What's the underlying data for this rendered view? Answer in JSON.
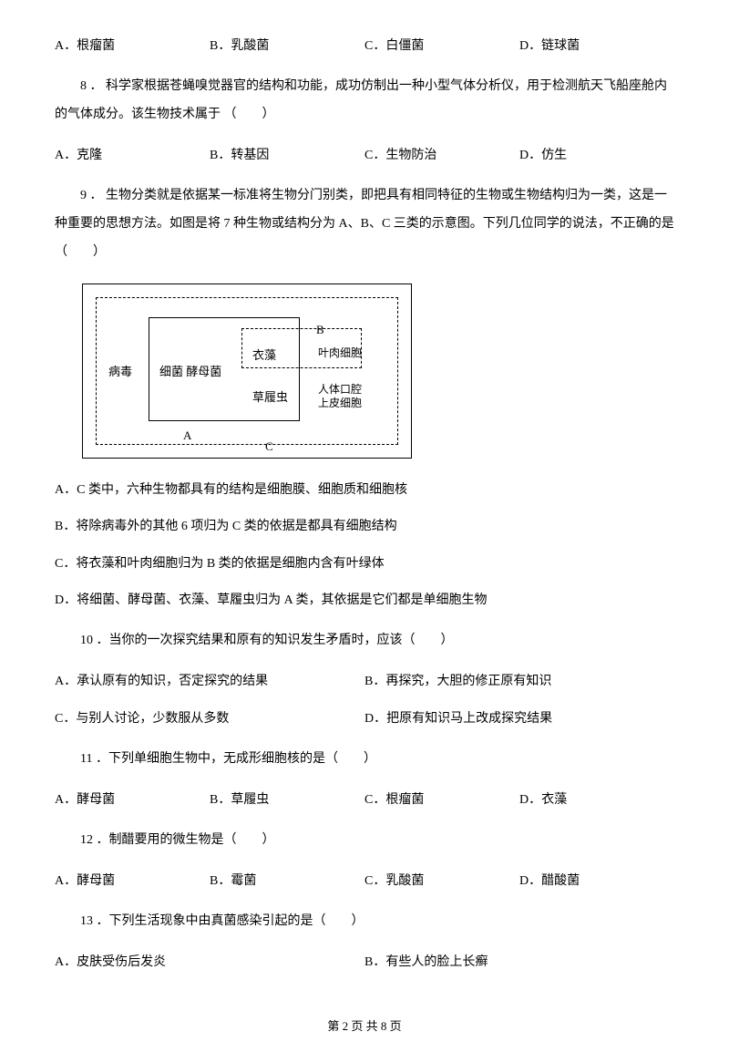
{
  "q7": {
    "options": {
      "A": "A．根瘤菌",
      "B": "B．乳酸菌",
      "C": "C．白僵菌",
      "D": "D．链球菌"
    }
  },
  "q8": {
    "stem": "8 ． 科学家根据苍蝇嗅觉器官的结构和功能，成功仿制出一种小型气体分析仪，用于检测航天飞船座舱内的气体成分。该生物技术属于 （　　）",
    "options": {
      "A": "A．克隆",
      "B": "B．转基因",
      "C": "C．生物防治",
      "D": "D．仿生"
    }
  },
  "q9": {
    "stem": "9 ． 生物分类就是依据某一标准将生物分门别类，即把具有相同特征的生物或生物结构归为一类，这是一种重要的思想方法。如图是将 7 种生物或结构分为 A、B、C 三类的示意图。下列几位同学的说法，不正确的是（　　）",
    "diagram": {
      "left_label": "病毒",
      "a_row": "细菌   酵母菌",
      "yizao": "衣藻",
      "caolv": "草履虫",
      "b_label": "B",
      "right_top": "叶肉细胞",
      "right_bot_1": "人体口腔",
      "right_bot_2": "上皮细胞",
      "a_label": "A",
      "c_label": "C"
    },
    "options": {
      "A": "A．C 类中，六种生物都具有的结构是细胞膜、细胞质和细胞核",
      "B": "B．将除病毒外的其他 6 项归为 C 类的依据是都具有细胞结构",
      "C": "C．将衣藻和叶肉细胞归为 B 类的依据是细胞内含有叶绿体",
      "D": "D．将细菌、酵母菌、衣藻、草履虫归为 A 类，其依据是它们都是单细胞生物"
    }
  },
  "q10": {
    "stem": "10 ．当你的一次探究结果和原有的知识发生矛盾时，应该（　　）",
    "options": {
      "A": "A．承认原有的知识，否定探究的结果",
      "B": "B．再探究，大胆的修正原有知识",
      "C": "C．与别人讨论，少数服从多数",
      "D": "D．把原有知识马上改成探究结果"
    }
  },
  "q11": {
    "stem": "11 ．下列单细胞生物中，无成形细胞核的是（　　）",
    "options": {
      "A": "A．酵母菌",
      "B": "B．草履虫",
      "C": "C．根瘤菌",
      "D": "D．衣藻"
    }
  },
  "q12": {
    "stem": "12 ．制醋要用的微生物是（　　）",
    "options": {
      "A": "A．酵母菌",
      "B": "B．霉菌",
      "C": "C．乳酸菌",
      "D": "D．醋酸菌"
    }
  },
  "q13": {
    "stem": "13 ．下列生活现象中由真菌感染引起的是（　　）",
    "options": {
      "A": "A．皮肤受伤后发炎",
      "B": "B．有些人的脸上长癣"
    }
  },
  "footer": {
    "text": "第 2 页 共 8 页"
  }
}
